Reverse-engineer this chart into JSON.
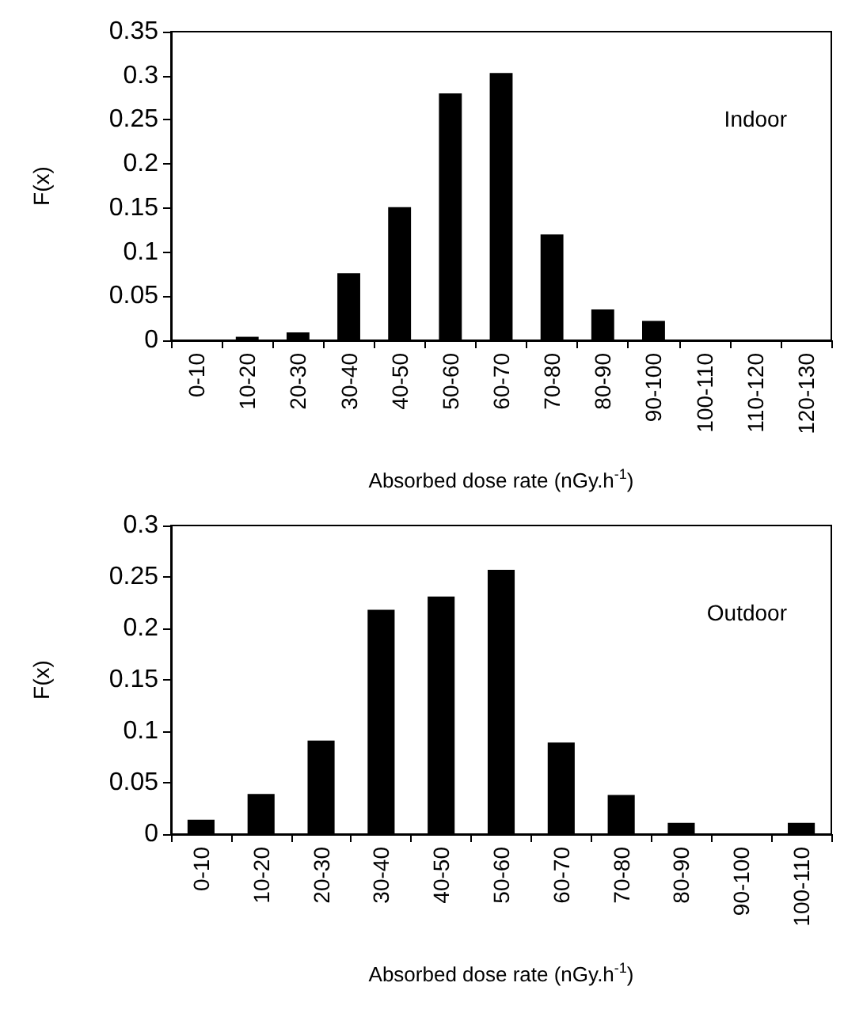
{
  "chart_data": [
    {
      "type": "bar",
      "categories": [
        "0-10",
        "10-20",
        "20-30",
        "30-40",
        "40-50",
        "50-60",
        "60-70",
        "70-80",
        "80-90",
        "90-100",
        "100-110",
        "110-120",
        "120-130"
      ],
      "values": [
        0,
        0.004,
        0.009,
        0.076,
        0.151,
        0.28,
        0.303,
        0.12,
        0.035,
        0.022,
        0,
        0,
        0
      ],
      "color": "#000000",
      "ylim": [
        0,
        0.35
      ],
      "yticks": [
        0,
        0.05,
        0.1,
        0.15,
        0.2,
        0.25,
        0.3,
        0.35
      ],
      "xlabel": "Absorbed dose rate (nGy.h$^{-1}$)",
      "ylabel": "F(x)",
      "annotations": [
        "Indoor"
      ],
      "grid": false
    },
    {
      "type": "bar",
      "categories": [
        "0-10",
        "10-20",
        "20-30",
        "30-40",
        "40-50",
        "50-60",
        "60-70",
        "70-80",
        "80-90",
        "90-100",
        "100-110"
      ],
      "values": [
        0.014,
        0.039,
        0.091,
        0.218,
        0.231,
        0.257,
        0.089,
        0.038,
        0.011,
        0,
        0.011
      ],
      "color": "#000000",
      "ylim": [
        0,
        0.3
      ],
      "yticks": [
        0,
        0.05,
        0.1,
        0.15,
        0.2,
        0.25,
        0.3
      ],
      "xlabel": "Absorbed dose rate (nGy.h$^{-1}$)",
      "ylabel": "F(x)",
      "annotations": [
        "Outdoor"
      ],
      "grid": false
    }
  ]
}
